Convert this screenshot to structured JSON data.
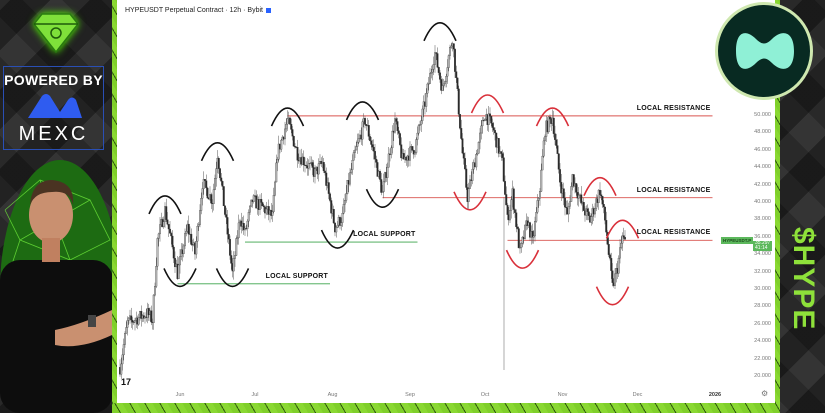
{
  "header": {
    "title": "HYPEUSDT Perpetual Contract · 12h · Bybit"
  },
  "sponsor": {
    "powered_by": "POWERED BY",
    "brand": "MEXC",
    "brand_color": "#2f5cf0"
  },
  "ticker_badge": {
    "text": "$HYPE",
    "color": "#8ee13a"
  },
  "price_scale": {
    "symbol": "HYPEUSDT.P",
    "last_price": "35.297",
    "countdown": "41:14"
  },
  "colors": {
    "resistance": "#d9534f",
    "support": "#3aa34a",
    "accent_green": "#7fcf2a",
    "up": "#ffffff",
    "down": "#333333"
  },
  "chart_data": {
    "type": "candlestick",
    "interval": "12h",
    "title": "HYPEUSDT Perpetual Contract · 12h · Bybit",
    "ylim": [
      18.4,
      63.2
    ],
    "y_ticks": [
      "50.000",
      "48.000",
      "46.000",
      "44.000",
      "42.000",
      "40.000",
      "38.000",
      "36.000",
      "34.000",
      "32.000",
      "30.000",
      "28.000",
      "26.000",
      "24.000",
      "22.000",
      "20.000"
    ],
    "x_ticks": [
      {
        "label": "Jun",
        "date": "2025-06-01"
      },
      {
        "label": "Jul",
        "date": "2025-07-01"
      },
      {
        "label": "Aug",
        "date": "2025-08-01"
      },
      {
        "label": "Sep",
        "date": "2025-09-01"
      },
      {
        "label": "Oct",
        "date": "2025-10-01"
      },
      {
        "label": "Nov",
        "date": "2025-11-01"
      },
      {
        "label": "Dec",
        "date": "2025-12-01"
      },
      {
        "label": "2026",
        "date": "2026-01-01",
        "bold": true
      }
    ],
    "price_path": [
      [
        "2025-05-08",
        21.0
      ],
      [
        "2025-05-11",
        26.1
      ],
      [
        "2025-05-19",
        27.2
      ],
      [
        "2025-05-21",
        26.4
      ],
      [
        "2025-05-23",
        35.6
      ],
      [
        "2025-05-26",
        39.1
      ],
      [
        "2025-05-31",
        31.8
      ],
      [
        "2025-06-04",
        37.1
      ],
      [
        "2025-06-07",
        34.1
      ],
      [
        "2025-06-10",
        42.2
      ],
      [
        "2025-06-14",
        40.2
      ],
      [
        "2025-06-16",
        45.6
      ],
      [
        "2025-06-22",
        31.8
      ],
      [
        "2025-06-25",
        38.3
      ],
      [
        "2025-06-27",
        36.4
      ],
      [
        "2025-06-30",
        40.2
      ],
      [
        "2025-07-04",
        39.4
      ],
      [
        "2025-07-08",
        38.3
      ],
      [
        "2025-07-10",
        45.6
      ],
      [
        "2025-07-14",
        49.4
      ],
      [
        "2025-07-18",
        45.6
      ],
      [
        "2025-07-25",
        43.3
      ],
      [
        "2025-07-28",
        44.5
      ],
      [
        "2025-08-02",
        37.1
      ],
      [
        "2025-08-05",
        38.3
      ],
      [
        "2025-08-07",
        41.7
      ],
      [
        "2025-08-10",
        45.6
      ],
      [
        "2025-08-14",
        49.4
      ],
      [
        "2025-08-17",
        46.3
      ],
      [
        "2025-08-21",
        41.0
      ],
      [
        "2025-08-26",
        49.4
      ],
      [
        "2025-08-29",
        44.8
      ],
      [
        "2025-09-03",
        46.3
      ],
      [
        "2025-09-07",
        51.4
      ],
      [
        "2025-09-10",
        56.0
      ],
      [
        "2025-09-11",
        57.1
      ],
      [
        "2025-09-14",
        52.9
      ],
      [
        "2025-09-18",
        59.0
      ],
      [
        "2025-09-22",
        45.6
      ],
      [
        "2025-09-24",
        40.6
      ],
      [
        "2025-09-27",
        44.8
      ],
      [
        "2025-10-01",
        50.2
      ],
      [
        "2025-10-04",
        48.6
      ],
      [
        "2025-10-08",
        44.5
      ],
      [
        "2025-10-10",
        37.9
      ],
      [
        "2025-10-12",
        41.0
      ],
      [
        "2025-10-15",
        34.1
      ],
      [
        "2025-10-18",
        37.9
      ],
      [
        "2025-10-20",
        35.3
      ],
      [
        "2025-10-23",
        41.7
      ],
      [
        "2025-10-25",
        48.3
      ],
      [
        "2025-10-28",
        49.8
      ],
      [
        "2025-10-31",
        42.5
      ],
      [
        "2025-11-03",
        38.3
      ],
      [
        "2025-11-05",
        42.9
      ],
      [
        "2025-11-09",
        39.4
      ],
      [
        "2025-11-12",
        37.9
      ],
      [
        "2025-11-16",
        41.4
      ],
      [
        "2025-11-18",
        37.9
      ],
      [
        "2025-11-21",
        30.2
      ],
      [
        "2025-11-23",
        32.5
      ],
      [
        "2025-11-25",
        36.0
      ],
      [
        "2025-11-26",
        35.3
      ]
    ],
    "levels": [
      {
        "kind": "resistance",
        "label": "LOCAL RESISTANCE",
        "price": 49.9,
        "from": "2025-07-14",
        "to": "2025-12-31"
      },
      {
        "kind": "resistance",
        "label": "LOCAL RESISTANCE",
        "price": 40.5,
        "from": "2025-08-21",
        "to": "2025-12-31"
      },
      {
        "kind": "resistance",
        "label": "LOCAL RESISTANCE",
        "price": 35.6,
        "from": "2025-10-10",
        "to": "2025-12-31"
      },
      {
        "kind": "support",
        "label": "LOCAL SUPPORT",
        "price": 35.4,
        "from": "2025-06-27",
        "to": "2025-09-04"
      },
      {
        "kind": "support",
        "label": "LOCAL SUPPORT",
        "price": 30.6,
        "from": "2025-05-31",
        "to": "2025-07-31"
      }
    ],
    "arcs": [
      {
        "date": "2025-05-26",
        "price": 40.7,
        "shape": "top",
        "color": "black"
      },
      {
        "date": "2025-06-01",
        "price": 30.3,
        "shape": "bottom",
        "color": "black"
      },
      {
        "date": "2025-06-16",
        "price": 46.8,
        "shape": "top",
        "color": "black"
      },
      {
        "date": "2025-06-22",
        "price": 30.3,
        "shape": "bottom",
        "color": "black"
      },
      {
        "date": "2025-07-14",
        "price": 50.8,
        "shape": "top",
        "color": "black"
      },
      {
        "date": "2025-08-03",
        "price": 34.7,
        "shape": "bottom",
        "color": "black"
      },
      {
        "date": "2025-08-13",
        "price": 51.5,
        "shape": "top",
        "color": "black"
      },
      {
        "date": "2025-08-21",
        "price": 39.4,
        "shape": "bottom",
        "color": "black"
      },
      {
        "date": "2025-09-13",
        "price": 60.6,
        "shape": "top",
        "color": "black"
      },
      {
        "date": "2025-09-25",
        "price": 39.1,
        "shape": "bottom",
        "color": "red"
      },
      {
        "date": "2025-10-02",
        "price": 52.3,
        "shape": "top",
        "color": "red"
      },
      {
        "date": "2025-10-16",
        "price": 32.4,
        "shape": "bottom",
        "color": "red"
      },
      {
        "date": "2025-10-28",
        "price": 50.8,
        "shape": "top",
        "color": "red"
      },
      {
        "date": "2025-11-16",
        "price": 42.8,
        "shape": "top",
        "color": "red"
      },
      {
        "date": "2025-11-25",
        "price": 37.9,
        "shape": "top",
        "color": "red"
      },
      {
        "date": "2025-11-21",
        "price": 28.2,
        "shape": "bottom",
        "color": "red"
      }
    ]
  }
}
